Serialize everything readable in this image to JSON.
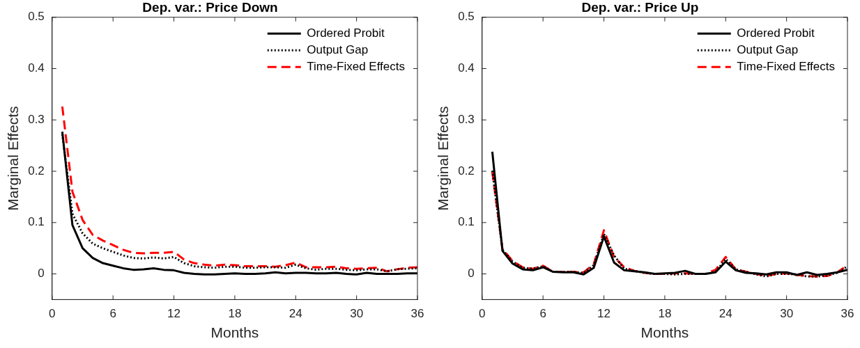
{
  "chart_data": [
    {
      "type": "line",
      "title": "Dep. var.: Price Down",
      "xlabel": "Months",
      "ylabel": "Marginal Effects",
      "x": [
        1,
        2,
        3,
        4,
        5,
        6,
        7,
        8,
        9,
        10,
        11,
        12,
        13,
        14,
        15,
        16,
        17,
        18,
        19,
        20,
        21,
        22,
        23,
        24,
        25,
        26,
        27,
        28,
        29,
        30,
        31,
        32,
        33,
        34,
        35,
        36
      ],
      "series": [
        {
          "name": "Ordered Probit",
          "color": "#000000",
          "line_style": "solid",
          "values": [
            0.277,
            0.095,
            0.05,
            0.031,
            0.021,
            0.016,
            0.011,
            0.008,
            0.009,
            0.011,
            0.008,
            0.007,
            0.002,
            0,
            -0.001,
            -0.001,
            0,
            0.001,
            0,
            0,
            0.001,
            0.003,
            0.001,
            0.002,
            0.002,
            0.001,
            0.001,
            0.002,
            0,
            -0.001,
            0.002,
            0,
            0,
            0,
            0.001,
            0.001
          ]
        },
        {
          "name": "Output Gap",
          "color": "#000000",
          "line_style": "dotted",
          "values": [
            0.272,
            0.117,
            0.079,
            0.059,
            0.05,
            0.043,
            0.036,
            0.031,
            0.03,
            0.032,
            0.03,
            0.033,
            0.021,
            0.015,
            0.013,
            0.012,
            0.014,
            0.014,
            0.012,
            0.012,
            0.013,
            0.013,
            0.012,
            0.018,
            0.011,
            0.008,
            0.01,
            0.01,
            0.008,
            0.007,
            0.009,
            0.009,
            0.005,
            0.009,
            0.01,
            0.011
          ]
        },
        {
          "name": "Time-Fixed Effects",
          "color": "#ff0000",
          "line_style": "dashed",
          "values": [
            0.326,
            0.16,
            0.105,
            0.076,
            0.065,
            0.056,
            0.047,
            0.041,
            0.04,
            0.041,
            0.041,
            0.043,
            0.028,
            0.021,
            0.018,
            0.016,
            0.018,
            0.017,
            0.015,
            0.015,
            0.015,
            0.014,
            0.017,
            0.022,
            0.013,
            0.013,
            0.013,
            0.014,
            0.011,
            0.01,
            0.011,
            0.012,
            0.005,
            0.009,
            0.012,
            0.013
          ]
        }
      ],
      "xlim": [
        0,
        36
      ],
      "xticks": [
        0,
        6,
        12,
        18,
        24,
        30,
        36
      ],
      "ylim": [
        -0.05,
        0.5
      ],
      "yticks": [
        0,
        0.1,
        0.2,
        0.3,
        0.4,
        0.5
      ],
      "legend": "top right"
    },
    {
      "type": "line",
      "title": "Dep. var.: Price Up",
      "xlabel": "Months",
      "ylabel": "Marginal Effects",
      "x": [
        1,
        2,
        3,
        4,
        5,
        6,
        7,
        8,
        9,
        10,
        11,
        12,
        13,
        14,
        15,
        16,
        17,
        18,
        19,
        20,
        21,
        22,
        23,
        24,
        25,
        26,
        27,
        28,
        29,
        30,
        31,
        32,
        33,
        34,
        35,
        36
      ],
      "series": [
        {
          "name": "Ordered Probit",
          "color": "#000000",
          "line_style": "solid",
          "values": [
            0.238,
            0.045,
            0.02,
            0.009,
            0.007,
            0.013,
            0.004,
            0.003,
            0.003,
            -0.001,
            0.012,
            0.073,
            0.022,
            0.007,
            0.005,
            0.003,
            0,
            0.001,
            0.002,
            0.006,
            0,
            0,
            0.003,
            0.024,
            0.007,
            0.002,
            0.001,
            -0.001,
            0.003,
            0.003,
            -0.002,
            0.003,
            -0.002,
            0,
            0.003,
            0.008
          ]
        },
        {
          "name": "Output Gap",
          "color": "#000000",
          "line_style": "dotted",
          "values": [
            0.201,
            0.047,
            0.024,
            0.012,
            0.01,
            0.015,
            0.004,
            0.004,
            0.004,
            0.002,
            0.017,
            0.078,
            0.036,
            0.01,
            0.006,
            0.002,
            0,
            0,
            -0.001,
            0,
            0,
            0,
            0.004,
            0.029,
            0.009,
            0.004,
            -0.001,
            -0.005,
            0,
            0,
            -0.001,
            -0.005,
            -0.005,
            -0.003,
            0.002,
            0.015
          ]
        },
        {
          "name": "Time-Fixed Effects",
          "color": "#ff0000",
          "line_style": "dashed",
          "values": [
            0.199,
            0.049,
            0.025,
            0.013,
            0.01,
            0.016,
            0.004,
            0.004,
            0.004,
            0.003,
            0.019,
            0.085,
            0.033,
            0.013,
            0.006,
            0.002,
            0,
            0,
            0.001,
            0.001,
            0,
            0,
            0.008,
            0.033,
            0.009,
            0.004,
            0,
            -0.004,
            0,
            0.001,
            -0.002,
            -0.004,
            -0.005,
            -0.004,
            0.003,
            0.017
          ]
        }
      ],
      "xlim": [
        0,
        36
      ],
      "xticks": [
        0,
        6,
        12,
        18,
        24,
        30,
        36
      ],
      "ylim": [
        -0.05,
        0.5
      ],
      "yticks": [
        0,
        0.1,
        0.2,
        0.3,
        0.4,
        0.5
      ],
      "legend": "top right"
    }
  ]
}
